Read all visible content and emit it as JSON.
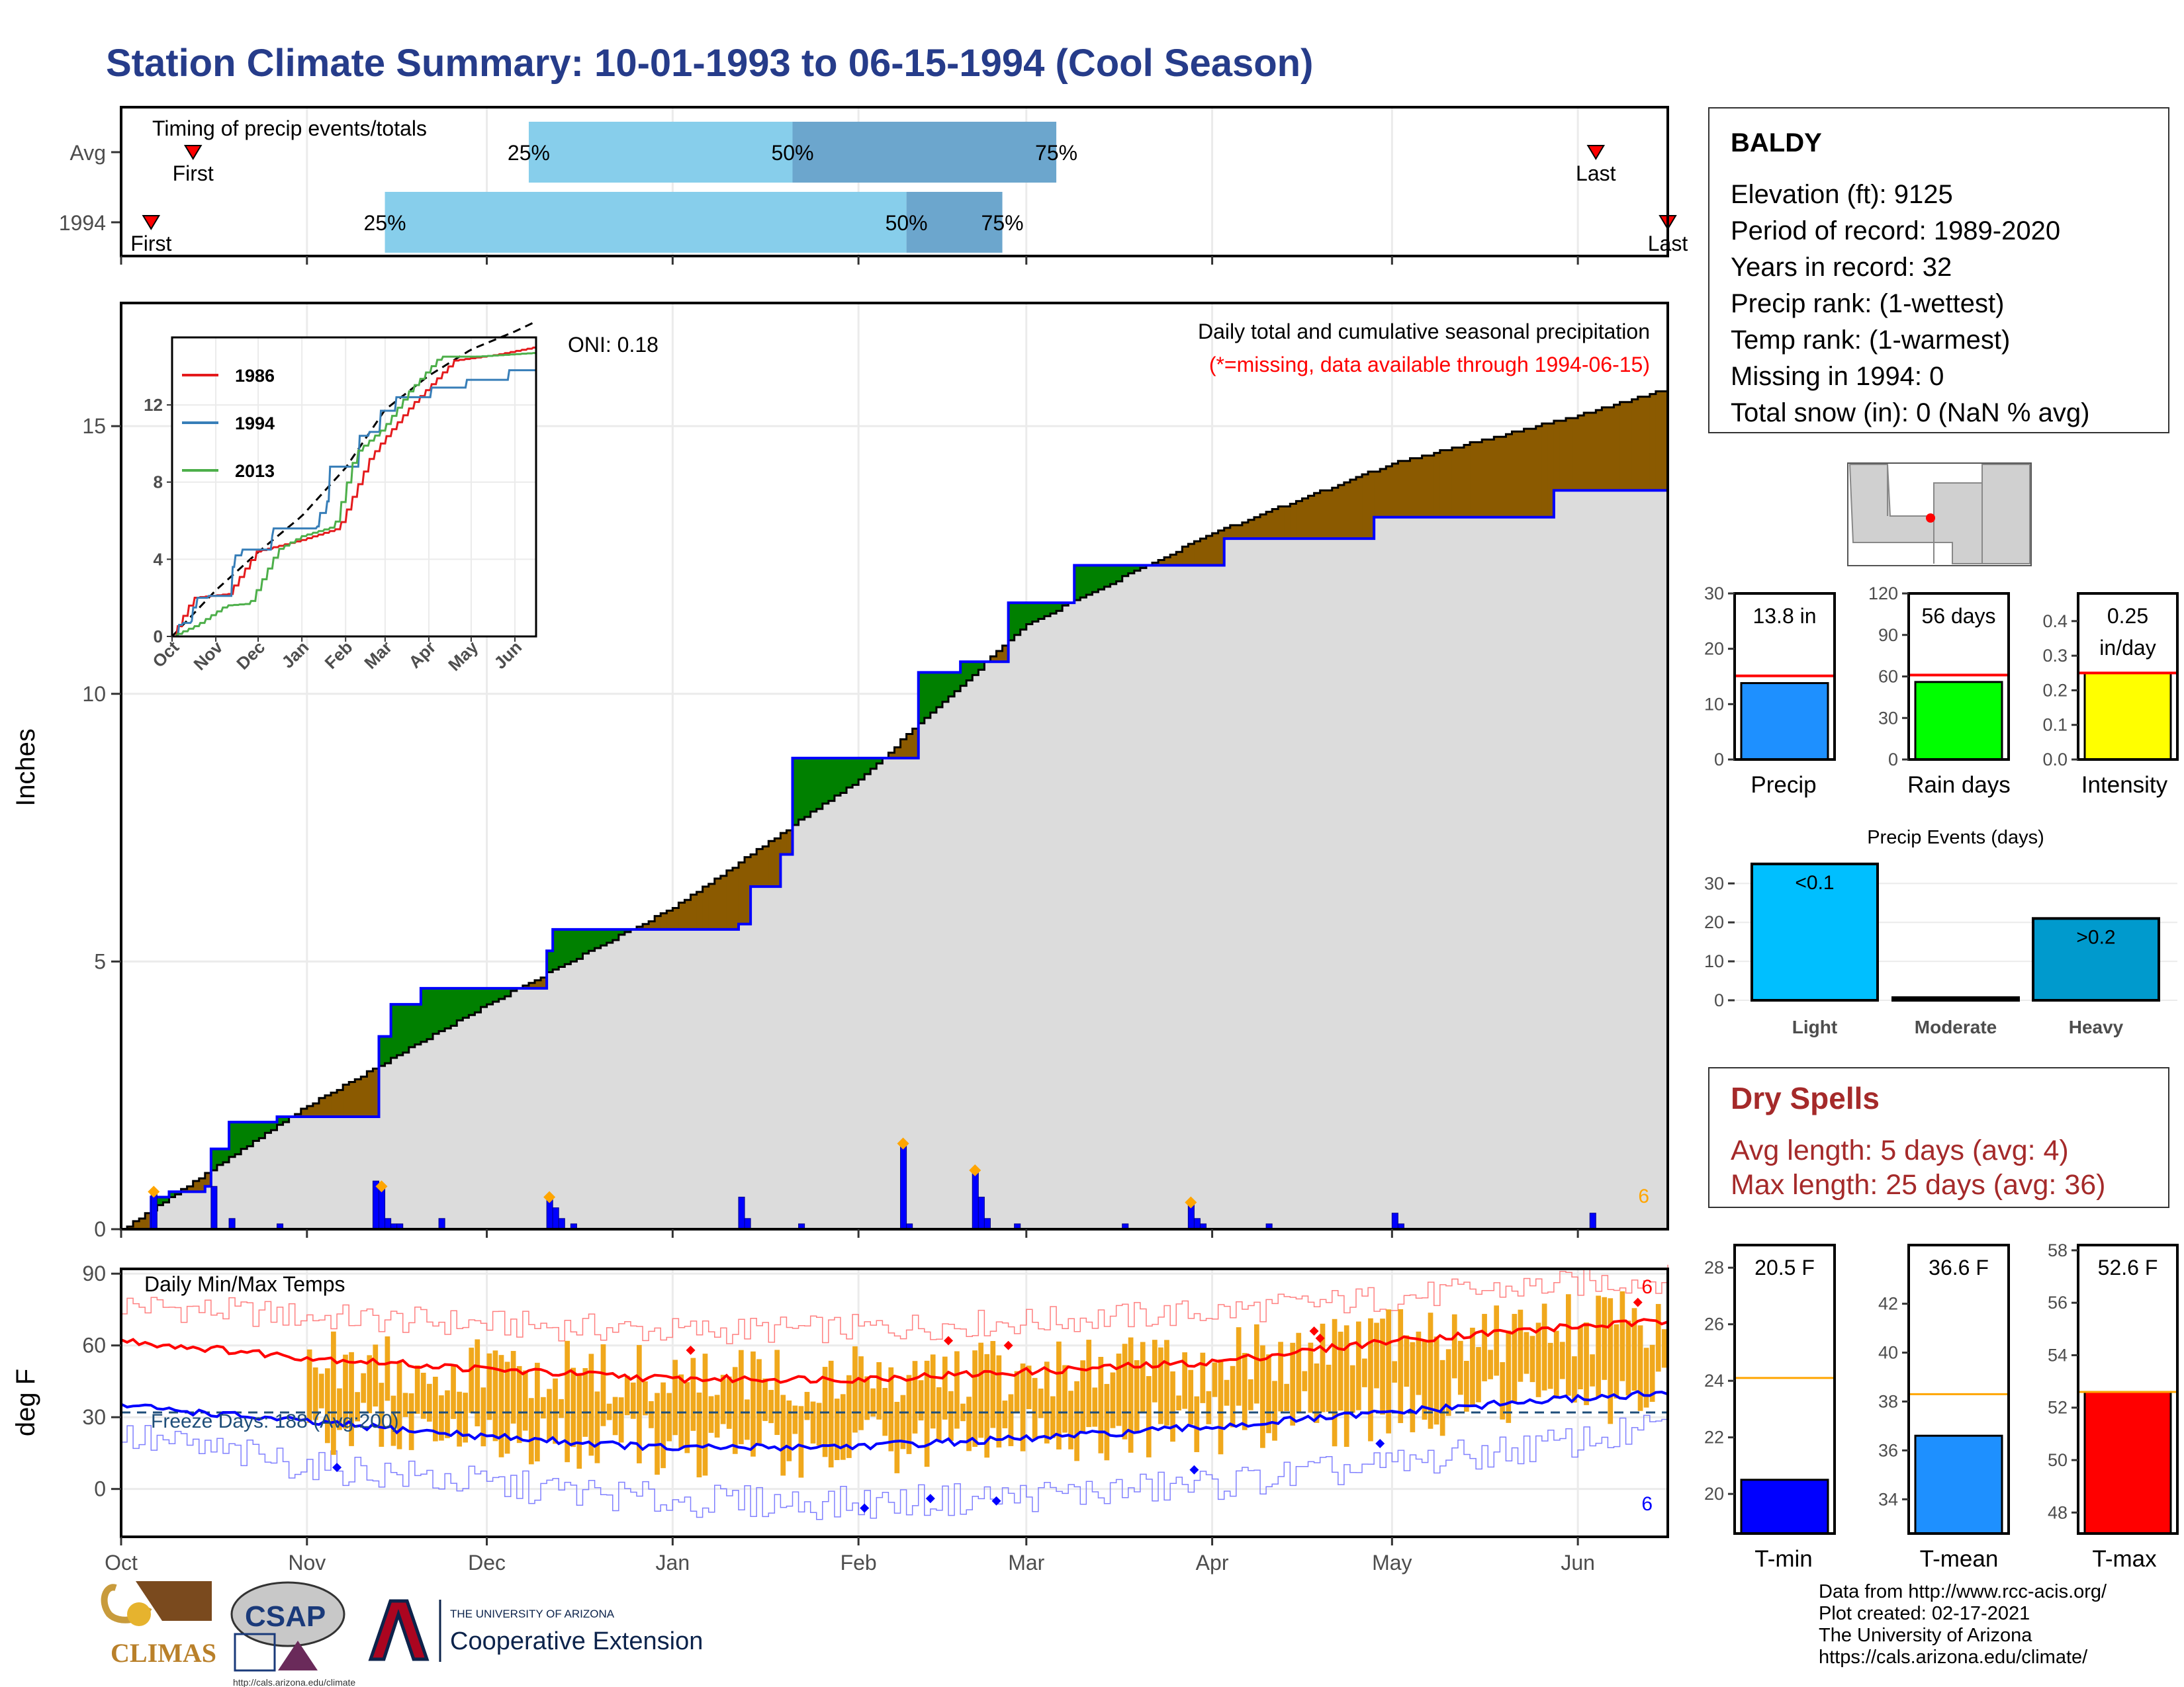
{
  "title": "Station Climate Summary: 10-01-1993 to 06-15-1994 (Cool Season)",
  "station": {
    "name": "BALDY",
    "lines": [
      "Elevation (ft): 9125",
      "Period of record: 1989-2020",
      "Years in record: 32",
      "Precip rank:  (1-wettest)",
      "Temp rank:  (1-warmest)",
      "Missing in 1994: 0",
      "Total snow (in): 0 (NaN % avg)"
    ]
  },
  "dry_spells": {
    "title": "Dry Spells",
    "lines": [
      "Avg length: 5 days (avg: 4)",
      "Max length: 25 days (avg: 36)"
    ]
  },
  "credits": [
    "Data from http://www.rcc-acis.org/",
    "Plot created: 02-17-2021",
    "The University of Arizona",
    "https://cals.arizona.edu/climate/"
  ],
  "logos": {
    "climas": "CLIMAS",
    "csap": "CSAP",
    "csap_url": "http://cals.arizona.edu/climate",
    "ua_small": "THE UNIVERSITY OF ARIZONA",
    "ua_big": "Cooperative Extension"
  },
  "colors": {
    "title": "#263c8a",
    "above_avg": "#008000",
    "below_avg": "#8b5a00",
    "avg_fill": "#dcdcdc",
    "precip_line": "#0000ff",
    "tmax": "#ff0000",
    "tmin": "#0000ff",
    "temp_bar": "#f0a81c",
    "timing_light": "#87ceeb",
    "timing_dark": "#6ca6cd",
    "dry_spells": "#a52a2a"
  },
  "chart_data": [
    {
      "type": "range-bar",
      "title": "Timing of precip events/totals",
      "rows": [
        "Avg",
        "1994"
      ],
      "x_domain_days": [
        0,
        258
      ],
      "quartile_labels": [
        "25%",
        "50%",
        "75%"
      ],
      "marker_labels": [
        "First",
        "Last"
      ],
      "avg": {
        "first": 12,
        "q25": 68,
        "q50": 112,
        "q75": 156,
        "last": 246
      },
      "y1994": {
        "first": 5,
        "q25": 44,
        "q50": 131,
        "q75": 147,
        "last": 258
      }
    },
    {
      "type": "area",
      "title": "Daily total and cumulative seasonal precipitation",
      "subtitle": "(*=missing, data available through 1994-06-15)",
      "ylabel": "Inches",
      "ylim": [
        0,
        17.3
      ],
      "yticks": [
        0,
        5,
        10,
        15
      ],
      "month_labels": [
        "Oct",
        "Nov",
        "Dec",
        "Jan",
        "Feb",
        "Mar",
        "Apr",
        "May",
        "Jun"
      ],
      "month_start_days": [
        0,
        31,
        61,
        92,
        123,
        151,
        182,
        212,
        243
      ],
      "season_length_days": 258,
      "oni_label": "ONI: 0.18",
      "count_label": "6",
      "avg_cumulative": {
        "day": [
          0,
          31,
          61,
          92,
          123,
          151,
          182,
          212,
          243,
          258
        ],
        "value": [
          0,
          2.3,
          4.2,
          6.0,
          8.4,
          11.3,
          13.0,
          14.3,
          15.2,
          15.7
        ]
      },
      "y1994_cumulative": {
        "day": [
          0,
          5,
          8,
          14,
          15,
          18,
          26,
          41,
          43,
          45,
          46,
          50,
          53,
          71,
          72,
          92,
          103,
          105,
          110,
          112,
          121,
          133,
          140,
          148,
          159,
          170,
          184,
          197,
          209,
          214,
          239,
          258
        ],
        "value": [
          0,
          0.6,
          0.7,
          0.8,
          1.5,
          2.0,
          2.1,
          2.1,
          3.6,
          4.2,
          4.2,
          4.5,
          4.5,
          5.2,
          5.6,
          5.6,
          5.7,
          6.4,
          7.0,
          8.8,
          8.8,
          10.4,
          10.6,
          11.7,
          12.4,
          12.4,
          12.9,
          12.9,
          13.3,
          13.3,
          13.8,
          13.8
        ]
      },
      "daily_precip": {
        "day": [
          5,
          15,
          18,
          26,
          42,
          43,
          44,
          45,
          46,
          53,
          71,
          72,
          73,
          75,
          103,
          104,
          113,
          130,
          131,
          142,
          143,
          144,
          149,
          167,
          178,
          179,
          180,
          191,
          212,
          213,
          245
        ],
        "value": [
          0.7,
          0.8,
          0.2,
          0.1,
          0.9,
          0.8,
          0.2,
          0.1,
          0.1,
          0.2,
          0.6,
          0.4,
          0.2,
          0.1,
          0.6,
          0.2,
          0.1,
          1.6,
          0.1,
          1.1,
          0.6,
          0.2,
          0.1,
          0.1,
          0.5,
          0.2,
          0.1,
          0.1,
          0.3,
          0.1,
          0.3
        ]
      },
      "highlight_days": [
        5,
        43,
        71,
        130,
        142,
        178
      ]
    },
    {
      "type": "line",
      "title": "",
      "series": [
        {
          "name": "1986",
          "color": "#e41a1c"
        },
        {
          "name": "1994",
          "color": "#377eb8"
        },
        {
          "name": "2013",
          "color": "#4daf4a"
        }
      ],
      "avg_line": "dashed black",
      "xlabels": [
        "Oct",
        "Nov",
        "Dec",
        "Jan",
        "Feb",
        "Mar",
        "Apr",
        "May",
        "Jun"
      ],
      "yticks": [
        0,
        4,
        8,
        12
      ],
      "ylim": [
        0,
        15.5
      ]
    },
    {
      "type": "bar",
      "title": "Daily Min/Max Temps",
      "ylabel": "deg F",
      "ylim": [
        -20,
        92
      ],
      "yticks": [
        0,
        30,
        60,
        90
      ],
      "freeze_label": "Freeze Days: 188 (Avg:200)",
      "freeze_line_f": 32,
      "count_label": "6",
      "avg_tmax": {
        "day": [
          0,
          31,
          61,
          92,
          123,
          151,
          182,
          212,
          243,
          258
        ],
        "value": [
          62,
          55,
          50,
          46,
          46,
          49,
          53,
          62,
          68,
          70
        ]
      },
      "avg_tmin": {
        "day": [
          0,
          31,
          61,
          92,
          123,
          151,
          182,
          212,
          243,
          258
        ],
        "value": [
          35,
          28,
          22,
          17,
          18,
          21,
          26,
          32,
          38,
          40
        ]
      },
      "record_high": {
        "day": [
          0,
          31,
          61,
          92,
          123,
          151,
          182,
          212,
          243,
          258
        ],
        "value": [
          77,
          72,
          69,
          66,
          67,
          70,
          74,
          80,
          86,
          88
        ]
      },
      "record_low": {
        "day": [
          0,
          31,
          61,
          92,
          123,
          151,
          182,
          212,
          243,
          258
        ],
        "value": [
          22,
          10,
          2,
          -5,
          -6,
          -3,
          2,
          10,
          20,
          26
        ]
      },
      "daily_high_markers": {
        "day": [
          95,
          138,
          148,
          199,
          200,
          253
        ],
        "value": [
          58,
          62,
          60,
          66,
          63,
          78
        ]
      },
      "daily_low_markers": {
        "day": [
          36,
          124,
          135,
          146,
          179,
          210
        ],
        "value": [
          9,
          -8,
          -4,
          -5,
          8,
          19
        ]
      }
    },
    {
      "type": "bar",
      "categories": [
        "Precip"
      ],
      "values": [
        13.8
      ],
      "avg": 15.1,
      "ylim": [
        0,
        30
      ],
      "yticks": [
        0,
        10,
        20,
        30
      ],
      "label": "13.8 in",
      "color": "#1e90ff"
    },
    {
      "type": "bar",
      "categories": [
        "Rain days"
      ],
      "values": [
        56
      ],
      "avg": 61,
      "ylim": [
        0,
        120
      ],
      "yticks": [
        0,
        30,
        60,
        90,
        120
      ],
      "label": "56 days",
      "color": "#00ff00"
    },
    {
      "type": "bar",
      "categories": [
        "Intensity"
      ],
      "values": [
        0.25
      ],
      "avg": 0.25,
      "ylim": [
        0,
        0.48
      ],
      "yticks": [
        0,
        0.1,
        0.2,
        0.3,
        0.4
      ],
      "label_lines": [
        "0.25",
        "in/day"
      ],
      "color": "#ffff00"
    },
    {
      "type": "bar",
      "title": "Precip Events (days)",
      "categories": [
        "Light",
        "Moderate",
        "Heavy"
      ],
      "values": [
        35,
        0,
        21
      ],
      "bar_labels": [
        "<0.1",
        "",
        ">0.2"
      ],
      "ylim": [
        0,
        36
      ],
      "yticks": [
        0,
        10,
        20,
        30
      ],
      "colors": [
        "#00bfff",
        "#009acd",
        "#009acd"
      ]
    },
    {
      "type": "bar",
      "categories": [
        "T-min"
      ],
      "values": [
        20.5
      ],
      "avg": 24.1,
      "ylim": [
        18.6,
        28.8
      ],
      "yticks": [
        20,
        22,
        24,
        26,
        28
      ],
      "label": "20.5 F",
      "color": "#0000ff"
    },
    {
      "type": "bar",
      "categories": [
        "T-mean"
      ],
      "values": [
        36.6
      ],
      "avg": 38.3,
      "ylim": [
        32.6,
        44.4
      ],
      "yticks": [
        34,
        36,
        38,
        40,
        42
      ],
      "label": "36.6 F",
      "color": "#1e90ff"
    },
    {
      "type": "bar",
      "categories": [
        "T-max"
      ],
      "values": [
        52.6
      ],
      "avg": 52.6,
      "ylim": [
        47.2,
        58.2
      ],
      "yticks": [
        48,
        50,
        52,
        54,
        56,
        58
      ],
      "label": "52.6 F",
      "color": "#ff0000"
    }
  ]
}
